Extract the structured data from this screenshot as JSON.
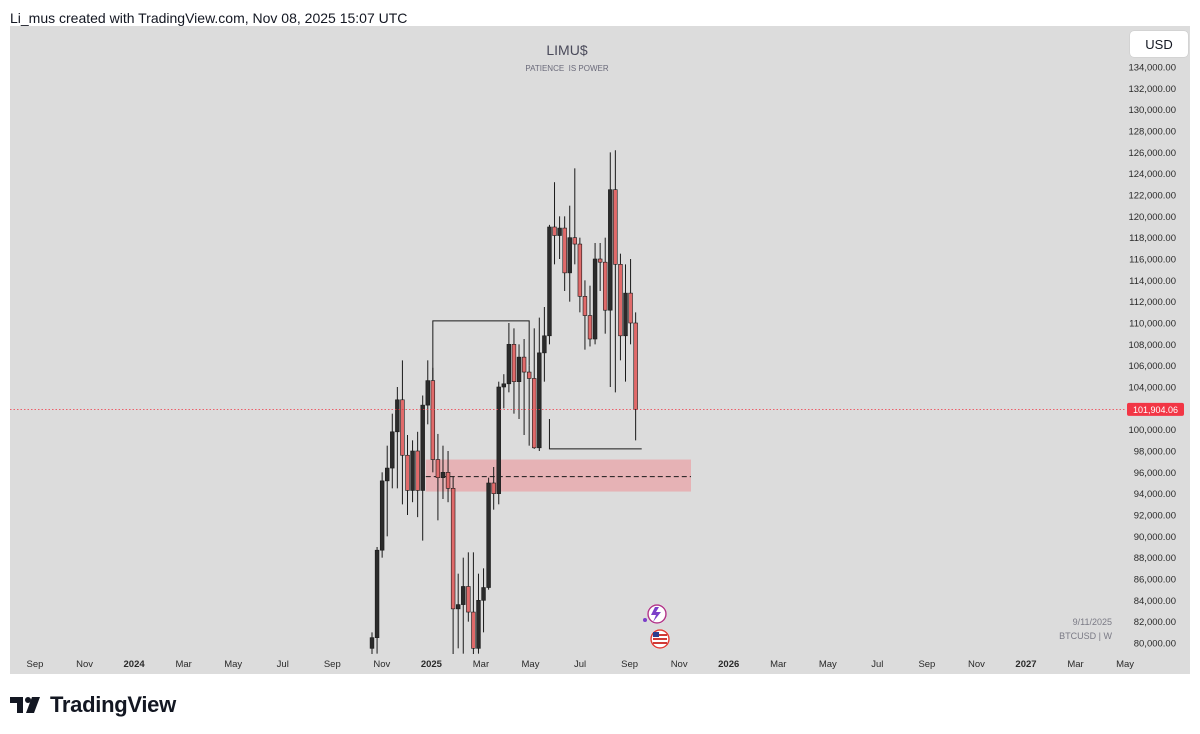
{
  "header": {
    "attribution": "Li_mus created with TradingView.com, Nov 08, 2025 15:07 UTC"
  },
  "currency_button": "USD",
  "footer": {
    "brand": "TradingView"
  },
  "colors": {
    "background": "#dcdcdc",
    "candle_up": "#2b2b2b",
    "candle_down": "#e06a6a",
    "price_line": "#f23645",
    "zone": "#e9a4a8"
  },
  "chart_data": {
    "type": "candlestick",
    "title": "LIMU$",
    "subtitle": "PATIENCE  IS POWER",
    "symbol_label": "BTCUSD | W",
    "date_label": "9/11/2025",
    "last_price_label": "101,904.06",
    "last_price": 101904.06,
    "ylim": [
      79000,
      136000
    ],
    "y_ticks": [
      80000,
      82000,
      84000,
      86000,
      88000,
      90000,
      92000,
      94000,
      96000,
      98000,
      100000,
      102000,
      104000,
      106000,
      108000,
      110000,
      112000,
      114000,
      116000,
      118000,
      120000,
      122000,
      124000,
      126000,
      128000,
      130000,
      132000,
      134000
    ],
    "y_tick_labels": [
      "80,000.00",
      "82,000.00",
      "84,000.00",
      "86,000.00",
      "88,000.00",
      "90,000.00",
      "92,000.00",
      "94,000.00",
      "96,000.00",
      "98,000.00",
      "100,000.00",
      "102,000.00",
      "104,000.00",
      "106,000.00",
      "108,000.00",
      "110,000.00",
      "112,000.00",
      "114,000.00",
      "116,000.00",
      "118,000.00",
      "120,000.00",
      "122,000.00",
      "124,000.00",
      "126,000.00",
      "128,000.00",
      "130,000.00",
      "132,000.00",
      "134,000.00"
    ],
    "x_ticks": [
      "Sep",
      "Nov",
      "2024",
      "Mar",
      "May",
      "Jul",
      "Sep",
      "Nov",
      "2025",
      "Mar",
      "May",
      "Jul",
      "Sep",
      "Nov",
      "2026",
      "Mar",
      "May",
      "Jul",
      "Sep",
      "Nov",
      "2027",
      "Mar",
      "May"
    ],
    "x_ticks_bold": [
      "2024",
      "2025",
      "2026",
      "2027"
    ],
    "candles": [
      {
        "o": 79500,
        "h": 81000,
        "l": 78000,
        "c": 80500
      },
      {
        "o": 80500,
        "h": 89000,
        "l": 79000,
        "c": 88700
      },
      {
        "o": 88700,
        "h": 96000,
        "l": 88000,
        "c": 95200
      },
      {
        "o": 95200,
        "h": 98500,
        "l": 90000,
        "c": 96400
      },
      {
        "o": 96400,
        "h": 101500,
        "l": 94500,
        "c": 99800
      },
      {
        "o": 99800,
        "h": 104000,
        "l": 94500,
        "c": 102800
      },
      {
        "o": 102800,
        "h": 106500,
        "l": 93000,
        "c": 97600
      },
      {
        "o": 97600,
        "h": 99500,
        "l": 92000,
        "c": 94300
      },
      {
        "o": 94300,
        "h": 99000,
        "l": 93200,
        "c": 98000
      },
      {
        "o": 98000,
        "h": 99800,
        "l": 91800,
        "c": 94300
      },
      {
        "o": 94300,
        "h": 103200,
        "l": 89600,
        "c": 102300
      },
      {
        "o": 102300,
        "h": 106500,
        "l": 100500,
        "c": 104600
      },
      {
        "o": 104600,
        "h": 105800,
        "l": 96000,
        "c": 97200
      },
      {
        "o": 97200,
        "h": 99600,
        "l": 91500,
        "c": 95500
      },
      {
        "o": 95500,
        "h": 98500,
        "l": 93500,
        "c": 96000
      },
      {
        "o": 96000,
        "h": 98000,
        "l": 93200,
        "c": 94500
      },
      {
        "o": 94500,
        "h": 95600,
        "l": 78000,
        "c": 83200
      },
      {
        "o": 83200,
        "h": 86500,
        "l": 79500,
        "c": 83600
      },
      {
        "o": 83600,
        "h": 88000,
        "l": 79000,
        "c": 85300
      },
      {
        "o": 85300,
        "h": 88500,
        "l": 82000,
        "c": 82900
      },
      {
        "o": 82900,
        "h": 88500,
        "l": 78500,
        "c": 79500
      },
      {
        "o": 79500,
        "h": 86500,
        "l": 79000,
        "c": 84000
      },
      {
        "o": 84000,
        "h": 87000,
        "l": 81000,
        "c": 85200
      },
      {
        "o": 85200,
        "h": 95500,
        "l": 85000,
        "c": 95000
      },
      {
        "o": 95000,
        "h": 96500,
        "l": 92500,
        "c": 94000
      },
      {
        "o": 94000,
        "h": 104500,
        "l": 93000,
        "c": 104000
      },
      {
        "o": 104000,
        "h": 105200,
        "l": 102000,
        "c": 104300
      },
      {
        "o": 104300,
        "h": 110000,
        "l": 103500,
        "c": 108000
      },
      {
        "o": 108000,
        "h": 109500,
        "l": 101500,
        "c": 104500
      },
      {
        "o": 104500,
        "h": 108000,
        "l": 101000,
        "c": 106800
      },
      {
        "o": 106800,
        "h": 108500,
        "l": 99500,
        "c": 105400
      },
      {
        "o": 105400,
        "h": 106000,
        "l": 98500,
        "c": 104800
      },
      {
        "o": 104800,
        "h": 109500,
        "l": 98200,
        "c": 98300
      },
      {
        "o": 98300,
        "h": 110500,
        "l": 98000,
        "c": 107200
      },
      {
        "o": 107200,
        "h": 111500,
        "l": 104500,
        "c": 108800
      },
      {
        "o": 108800,
        "h": 119200,
        "l": 108000,
        "c": 119000
      },
      {
        "o": 119000,
        "h": 123200,
        "l": 115500,
        "c": 118200
      },
      {
        "o": 118200,
        "h": 120000,
        "l": 116000,
        "c": 118900
      },
      {
        "o": 118900,
        "h": 120000,
        "l": 113000,
        "c": 114700
      },
      {
        "o": 114700,
        "h": 121000,
        "l": 112000,
        "c": 118000
      },
      {
        "o": 118000,
        "h": 124500,
        "l": 115500,
        "c": 117400
      },
      {
        "o": 117400,
        "h": 118000,
        "l": 111000,
        "c": 112500
      },
      {
        "o": 112500,
        "h": 114000,
        "l": 107500,
        "c": 110700
      },
      {
        "o": 110700,
        "h": 113500,
        "l": 107800,
        "c": 108500
      },
      {
        "o": 108500,
        "h": 117500,
        "l": 108000,
        "c": 116000
      },
      {
        "o": 116000,
        "h": 117500,
        "l": 113000,
        "c": 115700
      },
      {
        "o": 115700,
        "h": 118000,
        "l": 109000,
        "c": 111200
      },
      {
        "o": 111200,
        "h": 126000,
        "l": 104000,
        "c": 122500
      },
      {
        "o": 122500,
        "h": 126200,
        "l": 103500,
        "c": 115500
      },
      {
        "o": 115500,
        "h": 116500,
        "l": 106500,
        "c": 108800
      },
      {
        "o": 108800,
        "h": 115500,
        "l": 104500,
        "c": 112800
      },
      {
        "o": 112800,
        "h": 116000,
        "l": 108000,
        "c": 110000
      },
      {
        "o": 110000,
        "h": 111000,
        "l": 99000,
        "c": 101904
      }
    ],
    "annotations": {
      "zone": {
        "y_low": 94200,
        "y_high": 97200,
        "mid": 95600,
        "start_index": 11,
        "end_index": 65
      },
      "upper_line_y": 110200,
      "lower_line_y": 98200
    }
  }
}
